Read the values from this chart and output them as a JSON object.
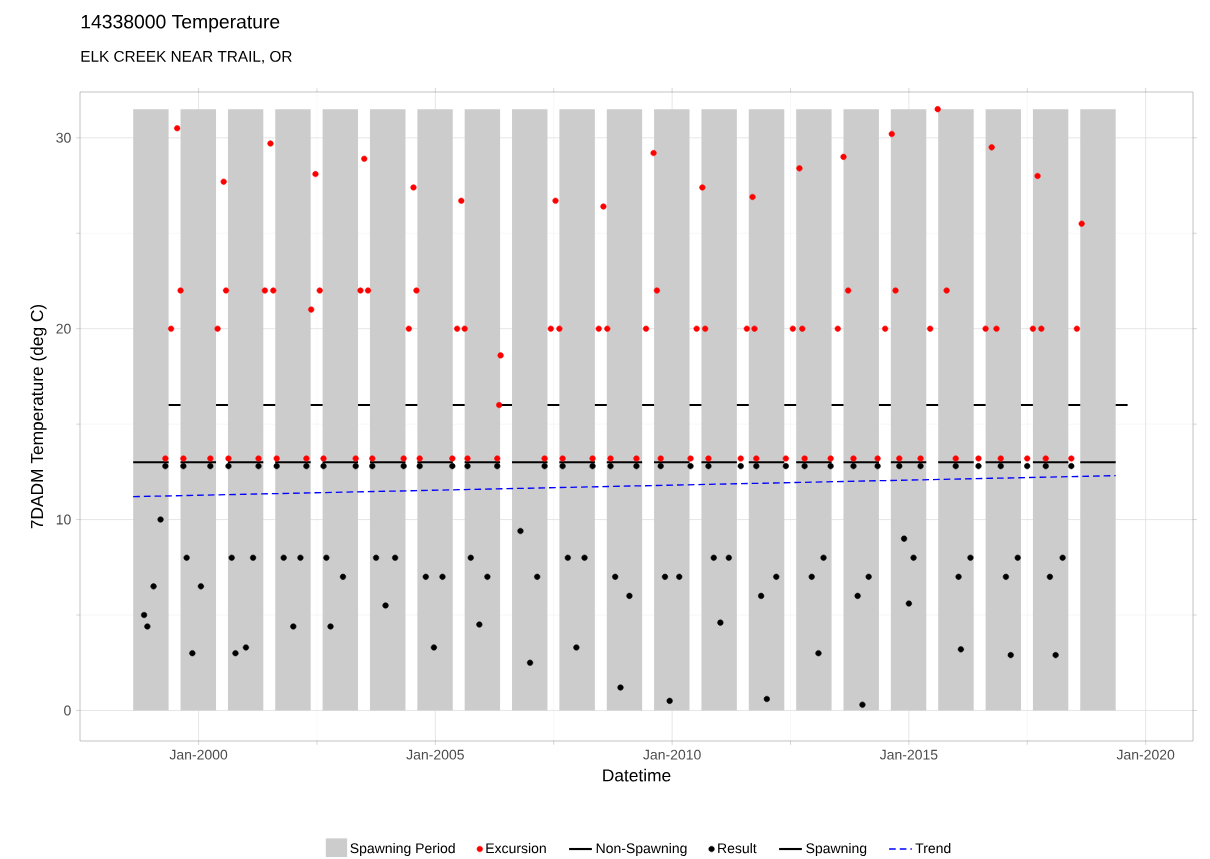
{
  "chart_data": {
    "type": "scatter",
    "title": "14338000 Temperature",
    "subtitle": "ELK CREEK NEAR TRAIL, OR",
    "xlabel": "Datetime",
    "ylabel": "7DADM Temperature (deg C)",
    "xlim": [
      "1997-07-01",
      "2021-01-01"
    ],
    "ylim": [
      -1.6,
      32.4
    ],
    "xticks": [
      {
        "value": "2000-01-01",
        "label": "Jan-2000"
      },
      {
        "value": "2005-01-01",
        "label": "Jan-2005"
      },
      {
        "value": "2010-01-01",
        "label": "Jan-2010"
      },
      {
        "value": "2015-01-01",
        "label": "Jan-2015"
      },
      {
        "value": "2020-01-01",
        "label": "Jan-2020"
      }
    ],
    "yticks": [
      0,
      10,
      20,
      30
    ],
    "grid": true,
    "legend": "bottom",
    "bands": [
      {
        "axis": "x",
        "from": "1998-08-15",
        "to": "1999-05-15",
        "label": "Spawning Period",
        "color": "#cccccc"
      },
      {
        "axis": "x",
        "from": "1999-08-15",
        "to": "2000-05-15",
        "color": "#cccccc"
      },
      {
        "axis": "x",
        "from": "2000-08-15",
        "to": "2001-05-15",
        "color": "#cccccc"
      },
      {
        "axis": "x",
        "from": "2001-08-15",
        "to": "2002-05-15",
        "color": "#cccccc"
      },
      {
        "axis": "x",
        "from": "2002-08-15",
        "to": "2003-05-15",
        "color": "#cccccc"
      },
      {
        "axis": "x",
        "from": "2003-08-15",
        "to": "2004-05-15",
        "color": "#cccccc"
      },
      {
        "axis": "x",
        "from": "2004-08-15",
        "to": "2005-05-15",
        "color": "#cccccc"
      },
      {
        "axis": "x",
        "from": "2005-08-15",
        "to": "2006-05-15",
        "color": "#cccccc"
      },
      {
        "axis": "x",
        "from": "2006-08-15",
        "to": "2007-05-15",
        "color": "#cccccc"
      },
      {
        "axis": "x",
        "from": "2007-08-15",
        "to": "2008-05-15",
        "color": "#cccccc"
      },
      {
        "axis": "x",
        "from": "2008-08-15",
        "to": "2009-05-15",
        "color": "#cccccc"
      },
      {
        "axis": "x",
        "from": "2009-08-15",
        "to": "2010-05-15",
        "color": "#cccccc"
      },
      {
        "axis": "x",
        "from": "2010-08-15",
        "to": "2011-05-15",
        "color": "#cccccc"
      },
      {
        "axis": "x",
        "from": "2011-08-15",
        "to": "2012-05-15",
        "color": "#cccccc"
      },
      {
        "axis": "x",
        "from": "2012-08-15",
        "to": "2013-05-15",
        "color": "#cccccc"
      },
      {
        "axis": "x",
        "from": "2013-08-15",
        "to": "2014-05-15",
        "color": "#cccccc"
      },
      {
        "axis": "x",
        "from": "2014-08-15",
        "to": "2015-05-15",
        "color": "#cccccc"
      },
      {
        "axis": "x",
        "from": "2015-08-15",
        "to": "2016-05-15",
        "color": "#cccccc"
      },
      {
        "axis": "x",
        "from": "2016-08-15",
        "to": "2017-05-15",
        "color": "#cccccc"
      },
      {
        "axis": "x",
        "from": "2017-08-15",
        "to": "2018-05-15",
        "color": "#cccccc"
      },
      {
        "axis": "x",
        "from": "2018-08-15",
        "to": "2019-05-15",
        "color": "#cccccc"
      }
    ],
    "series": [
      {
        "name": "Excursion",
        "marker": "circle",
        "color": "#ff0000",
        "x": [
          "1999-04-20",
          "1999-06-03",
          "1999-07-20",
          "1999-08-15",
          "1999-09-06",
          "2000-04-01",
          "2000-05-27",
          "2000-07-13",
          "2000-07-31",
          "2000-08-19",
          "2001-04-08",
          "2001-05-27",
          "2001-07-09",
          "2001-07-31",
          "2001-08-26",
          "2002-04-12",
          "2002-05-19",
          "2002-06-21",
          "2002-07-24",
          "2002-08-22",
          "2003-04-27",
          "2003-06-03",
          "2003-07-02",
          "2003-07-31",
          "2003-09-02",
          "2004-05-01",
          "2004-06-10",
          "2004-07-16",
          "2004-08-08",
          "2004-09-02",
          "2005-05-12",
          "2005-06-18",
          "2005-07-20",
          "2005-08-15",
          "2005-09-06",
          "2006-04-23",
          "2006-05-08",
          "2006-05-19",
          "2007-04-23",
          "2007-06-10",
          "2007-07-16",
          "2007-08-15",
          "2007-09-09",
          "2008-04-27",
          "2008-06-14",
          "2008-07-20",
          "2008-08-19",
          "2008-09-13",
          "2009-04-01",
          "2009-06-14",
          "2009-08-11",
          "2009-09-06",
          "2009-10-05",
          "2010-05-23",
          "2010-07-09",
          "2010-08-22",
          "2010-09-13",
          "2010-10-08",
          "2011-06-14",
          "2011-07-31",
          "2011-09-13",
          "2011-09-28",
          "2011-10-12",
          "2012-05-27",
          "2012-07-20",
          "2012-09-09",
          "2012-10-01",
          "2012-10-19",
          "2013-05-08",
          "2013-07-02",
          "2013-08-15",
          "2013-09-20",
          "2013-10-31",
          "2014-05-05",
          "2014-07-02",
          "2014-08-22",
          "2014-09-20",
          "2014-10-19",
          "2015-04-01",
          "2015-06-14",
          "2015-08-11",
          "2015-10-19",
          "2015-12-28",
          "2016-06-21",
          "2016-08-15",
          "2016-10-01",
          "2016-11-07",
          "2016-12-10",
          "2017-07-02",
          "2017-08-15",
          "2017-09-20",
          "2017-10-19",
          "2017-11-22",
          "2018-06-07",
          "2018-07-20",
          "2018-08-26"
        ],
        "values": [
          13.2,
          20,
          30.5,
          22,
          13.2,
          13.2,
          20,
          27.7,
          22,
          13.2,
          13.2,
          22,
          29.7,
          22,
          13.2,
          13.2,
          21,
          28.1,
          22,
          13.2,
          13.2,
          22,
          28.9,
          22,
          13.2,
          13.2,
          20,
          27.4,
          22,
          13.2,
          13.2,
          20,
          26.7,
          20,
          13.2,
          13.2,
          16,
          18.6,
          13.2,
          20,
          26.7,
          20,
          13.2,
          13.2,
          20,
          26.4,
          20,
          13.2,
          13.2,
          20,
          29.2,
          22,
          13.2,
          13.2,
          20,
          27.4,
          20,
          13.2,
          13.2,
          20,
          26.9,
          20,
          13.2,
          13.2,
          20,
          28.4,
          20,
          13.2,
          13.2,
          20,
          29.0,
          22,
          13.2,
          13.2,
          20,
          30.2,
          22,
          13.2,
          13.2,
          20,
          31.5,
          22,
          13.2,
          13.2,
          20,
          29.5,
          20,
          13.2,
          13.2,
          20,
          28.0,
          20,
          13.2,
          13.2,
          20,
          25.5
        ]
      },
      {
        "name": "Non-Spawning",
        "type": "line",
        "line_style": "solid",
        "color": "#000000",
        "x": [
          "1999-05-15",
          "1999-08-15",
          "1999-09-13",
          "2000-05-15",
          "2000-08-15",
          "2000-09-13",
          "2001-05-15",
          "2001-08-15",
          "2001-09-13",
          "2002-05-15",
          "2002-08-15",
          "2002-09-13",
          "2003-05-15",
          "2003-08-15",
          "2003-09-13",
          "2004-05-15",
          "2004-08-15",
          "2004-09-13",
          "2005-05-15",
          "2005-08-15",
          "2005-09-13",
          "2006-05-15",
          "2006-08-15",
          "2006-09-13",
          "2007-05-15",
          "2007-08-15",
          "2007-09-13",
          "2008-05-15",
          "2008-08-15",
          "2008-09-13",
          "2009-05-15",
          "2009-08-15",
          "2009-09-13",
          "2010-05-15",
          "2010-08-15",
          "2010-09-13",
          "2011-05-15",
          "2011-08-15",
          "2011-09-13",
          "2012-05-15",
          "2012-08-15",
          "2012-09-13",
          "2013-05-15",
          "2013-08-15",
          "2013-09-13",
          "2014-05-15",
          "2014-08-15",
          "2014-09-13",
          "2015-05-15",
          "2015-08-15",
          "2015-09-13",
          "2016-05-15",
          "2016-08-15",
          "2016-09-13",
          "2017-05-15",
          "2017-08-15",
          "2017-09-13",
          "2018-05-15",
          "2018-08-15",
          "2018-09-13",
          "2019-05-15",
          "2019-08-15"
        ],
        "values": [
          16,
          16,
          null,
          16,
          16,
          null,
          16,
          16,
          null,
          16,
          16,
          null,
          16,
          16,
          null,
          16,
          16,
          null,
          16,
          16,
          null,
          16,
          16,
          null,
          16,
          16,
          null,
          16,
          16,
          null,
          16,
          16,
          null,
          16,
          16,
          null,
          16,
          16,
          null,
          16,
          16,
          null,
          16,
          16,
          null,
          16,
          16,
          null,
          16,
          16,
          null,
          16,
          16,
          null,
          16,
          16,
          null,
          16,
          16,
          null,
          16,
          16
        ]
      },
      {
        "name": "Result",
        "marker": "circle",
        "color": "#000000",
        "x": [
          "1998-11-07",
          "1998-12-02",
          "1999-01-19",
          "1999-03-14",
          "1999-04-20",
          "1999-09-06",
          "1999-10-01",
          "1999-11-14",
          "2000-01-19",
          "2000-04-01",
          "2000-08-19",
          "2000-09-13",
          "2000-10-12",
          "2001-01-01",
          "2001-02-25",
          "2001-04-08",
          "2001-08-26",
          "2001-10-19",
          "2002-01-01",
          "2002-02-25",
          "2002-04-12",
          "2002-08-22",
          "2002-09-13",
          "2002-10-15",
          "2003-01-19",
          "2003-04-27",
          "2003-09-02",
          "2003-10-01",
          "2003-12-13",
          "2004-02-25",
          "2004-05-01",
          "2004-09-02",
          "2004-10-19",
          "2004-12-21",
          "2005-02-25",
          "2005-05-12",
          "2005-09-06",
          "2005-10-01",
          "2005-12-06",
          "2006-02-06",
          "2006-04-23",
          "2006-10-19",
          "2007-01-01",
          "2007-02-25",
          "2007-04-23",
          "2007-09-09",
          "2007-10-19",
          "2007-12-24",
          "2008-02-25",
          "2008-04-27",
          "2008-09-13",
          "2008-10-19",
          "2008-11-29",
          "2009-02-06",
          "2009-04-01",
          "2009-10-05",
          "2009-11-07",
          "2009-12-13",
          "2010-02-25",
          "2010-05-23",
          "2010-10-08",
          "2010-11-18",
          "2011-01-08",
          "2011-03-14",
          "2011-06-14",
          "2011-10-12",
          "2011-11-18",
          "2012-01-01",
          "2012-03-14",
          "2012-05-27",
          "2012-10-19",
          "2012-12-13",
          "2013-02-03",
          "2013-03-14",
          "2013-05-08",
          "2013-10-31",
          "2013-12-02",
          "2014-01-08",
          "2014-02-25",
          "2014-05-05",
          "2014-10-19",
          "2014-11-25",
          "2015-01-01",
          "2015-02-06",
          "2015-04-01",
          "2015-12-28",
          "2016-01-19",
          "2016-02-06",
          "2016-04-20",
          "2016-06-21",
          "2016-12-10",
          "2017-01-19",
          "2017-02-25",
          "2017-04-20",
          "2017-07-02",
          "2017-11-22",
          "2017-12-24",
          "2018-02-06",
          "2018-04-01",
          "2018-06-07"
        ],
        "values": [
          5.0,
          4.4,
          6.5,
          10,
          12.8,
          12.8,
          8,
          3.0,
          6.5,
          12.8,
          12.8,
          8,
          3.0,
          3.3,
          8,
          12.8,
          12.8,
          8,
          4.4,
          8,
          12.8,
          12.8,
          8,
          4.4,
          7,
          12.8,
          12.8,
          8,
          5.5,
          8,
          12.8,
          12.8,
          7,
          3.3,
          7,
          12.8,
          12.8,
          8,
          4.5,
          7,
          12.8,
          9.4,
          2.5,
          7,
          12.8,
          12.8,
          8,
          3.3,
          8,
          12.8,
          12.8,
          7,
          1.2,
          6,
          12.8,
          12.8,
          7,
          0.5,
          7,
          12.8,
          12.8,
          8,
          4.6,
          8,
          12.8,
          12.8,
          6,
          0.6,
          7,
          12.8,
          12.8,
          7,
          3.0,
          8,
          12.8,
          12.8,
          6,
          0.3,
          7,
          12.8,
          12.8,
          9,
          5.6,
          8,
          12.8,
          12.8,
          7,
          3.2,
          8,
          12.8,
          12.8,
          7,
          2.9,
          8,
          12.8,
          12.8,
          7,
          2.9,
          8,
          12.8
        ]
      },
      {
        "name": "Spawning",
        "type": "line",
        "line_style": "solid",
        "color": "#000000",
        "x": [
          "1998-08-15",
          "1999-05-15",
          "1999-07-01",
          "1999-08-15",
          "2000-05-15",
          "2000-07-01",
          "2000-08-15",
          "2001-05-15",
          "2001-07-01",
          "2001-08-15",
          "2002-05-15",
          "2002-07-01",
          "2002-08-15",
          "2003-05-15",
          "2003-07-01",
          "2003-08-15",
          "2004-05-15",
          "2004-07-01",
          "2004-08-15",
          "2005-05-15",
          "2005-07-01",
          "2005-08-15",
          "2006-05-15",
          "2006-07-01",
          "2006-08-15",
          "2007-05-15",
          "2007-07-01",
          "2007-08-15",
          "2008-05-15",
          "2008-07-01",
          "2008-08-15",
          "2009-05-15",
          "2009-07-01",
          "2009-08-15",
          "2010-05-15",
          "2010-07-01",
          "2010-08-15",
          "2011-05-15",
          "2011-07-01",
          "2011-08-15",
          "2012-05-15",
          "2012-07-01",
          "2012-08-15",
          "2013-05-15",
          "2013-07-01",
          "2013-08-15",
          "2014-05-15",
          "2014-07-01",
          "2014-08-15",
          "2015-05-15",
          "2015-07-01",
          "2015-08-15",
          "2016-05-15",
          "2016-07-01",
          "2016-08-15",
          "2017-05-15",
          "2017-07-01",
          "2017-08-15",
          "2018-05-15",
          "2018-07-01",
          "2018-08-15",
          "2019-05-15"
        ],
        "values": [
          13,
          13,
          null,
          13,
          13,
          null,
          13,
          13,
          null,
          13,
          13,
          null,
          13,
          13,
          null,
          13,
          13,
          null,
          13,
          13,
          null,
          13,
          13,
          null,
          13,
          13,
          null,
          13,
          13,
          null,
          13,
          13,
          null,
          13,
          13,
          null,
          13,
          13,
          null,
          13,
          13,
          null,
          13,
          13,
          null,
          13,
          13,
          null,
          13,
          13,
          null,
          13,
          13,
          null,
          13,
          13,
          null,
          13,
          13,
          null,
          13,
          13
        ]
      },
      {
        "name": "Trend",
        "type": "line",
        "line_style": "dashed",
        "color": "#0000ff",
        "x": [
          "1998-08-15",
          "2019-05-15"
        ],
        "values": [
          11.2,
          12.3
        ]
      }
    ]
  }
}
